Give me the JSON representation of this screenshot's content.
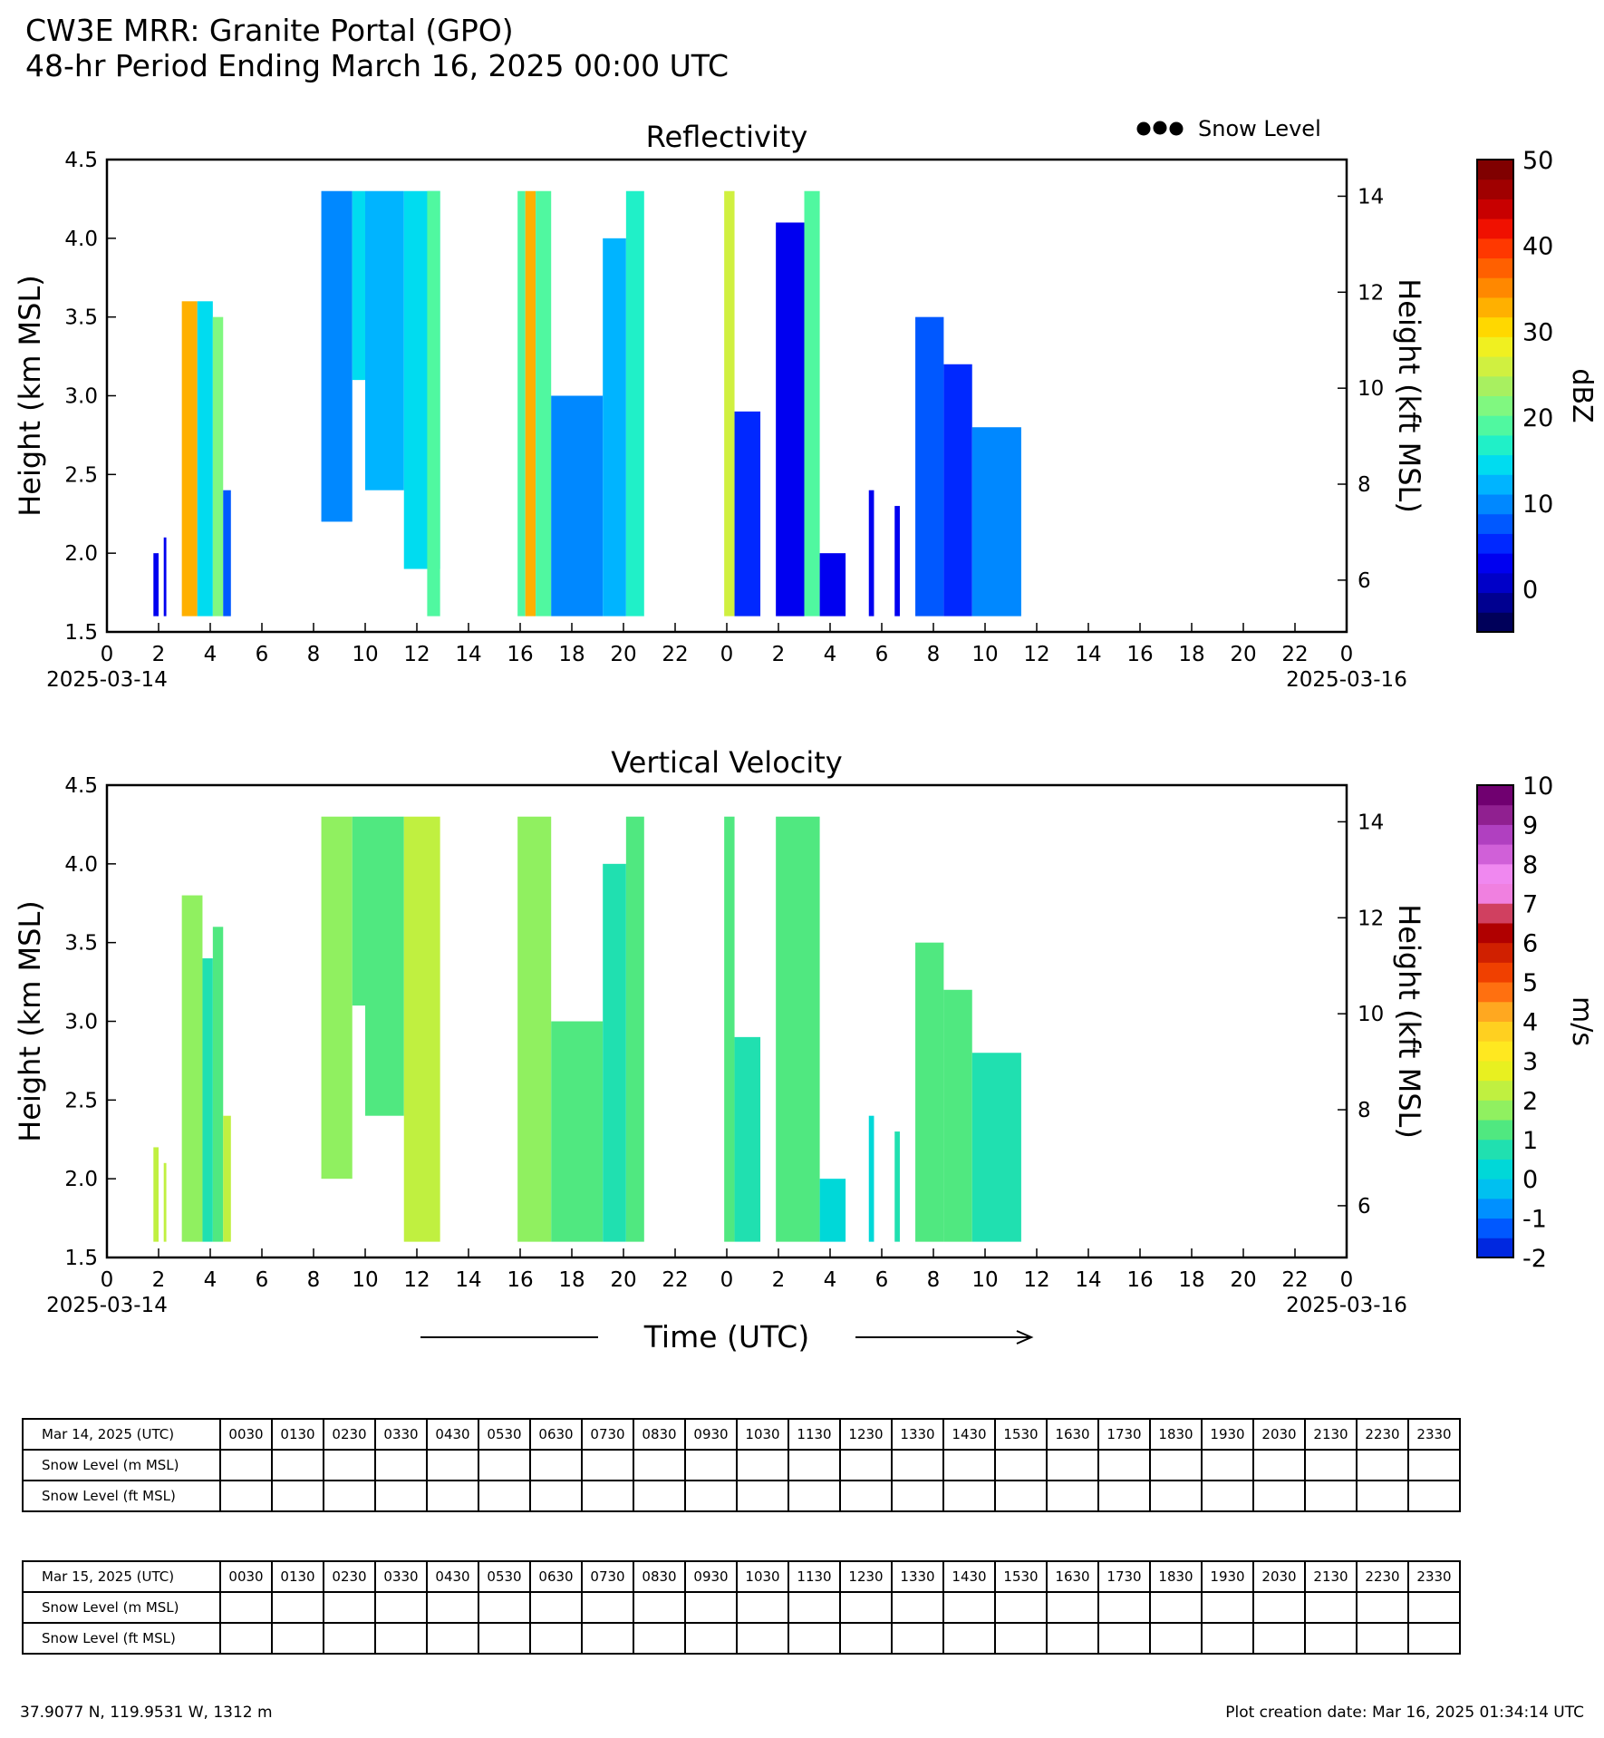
{
  "titles": {
    "line1": "CW3E MRR: Granite Portal (GPO)",
    "line2": "48-hr Period Ending March 16, 2025 00:00 UTC"
  },
  "legend": {
    "marker_label": "Snow Level"
  },
  "xaxis": {
    "label": "Time (UTC)",
    "tick_labels": [
      "0",
      "2",
      "4",
      "6",
      "8",
      "10",
      "12",
      "14",
      "16",
      "18",
      "20",
      "22",
      "0",
      "2",
      "4",
      "6",
      "8",
      "10",
      "12",
      "14",
      "16",
      "18",
      "20",
      "22",
      "0"
    ],
    "start_date": "2025-03-14",
    "end_date": "2025-03-16"
  },
  "chart_data": [
    {
      "type": "heatmap",
      "title": "Reflectivity",
      "ylabel": "Height (km MSL)",
      "ylabel_right": "Height (kft MSL)",
      "ylim": [
        1.5,
        4.5
      ],
      "yticks": [
        "1.5",
        "2.0",
        "2.5",
        "3.0",
        "3.5",
        "4.0",
        "4.5"
      ],
      "yticks_right": [
        "6",
        "8",
        "10",
        "12",
        "14"
      ],
      "xlim_hours": [
        0,
        48
      ],
      "colorbar": {
        "label": "dBZ",
        "range": [
          -5,
          50
        ],
        "ticks": [
          "0",
          "10",
          "20",
          "30",
          "40",
          "50"
        ],
        "colors": [
          "#00005a",
          "#000090",
          "#0000c8",
          "#0000f0",
          "#0028ff",
          "#0058ff",
          "#0088ff",
          "#00b4ff",
          "#00dcf0",
          "#20f0c8",
          "#50f8a0",
          "#80f880",
          "#a8f060",
          "#d0f040",
          "#f0f020",
          "#ffd800",
          "#ffb000",
          "#ff8800",
          "#ff6000",
          "#ff3800",
          "#f01000",
          "#c80000",
          "#a00000",
          "#800000"
        ]
      },
      "echoes": [
        {
          "start": 1.8,
          "end": 2.0,
          "top": 2.0,
          "base": 1.6,
          "dbz": 2
        },
        {
          "start": 2.2,
          "end": 2.3,
          "top": 2.1,
          "base": 1.6,
          "dbz": 2
        },
        {
          "start": 2.9,
          "end": 3.5,
          "top": 3.6,
          "base": 1.6,
          "dbz": 32
        },
        {
          "start": 3.5,
          "end": 4.1,
          "top": 3.6,
          "base": 1.6,
          "dbz": 15
        },
        {
          "start": 4.1,
          "end": 4.5,
          "top": 3.5,
          "base": 1.6,
          "dbz": 22
        },
        {
          "start": 4.5,
          "end": 4.8,
          "top": 2.4,
          "base": 1.6,
          "dbz": 8
        },
        {
          "start": 8.3,
          "end": 9.5,
          "top": 4.3,
          "base": 2.2,
          "dbz": 10
        },
        {
          "start": 9.5,
          "end": 10.0,
          "top": 4.3,
          "base": 3.1,
          "dbz": 14
        },
        {
          "start": 10.0,
          "end": 11.5,
          "top": 4.3,
          "base": 2.4,
          "dbz": 12
        },
        {
          "start": 11.5,
          "end": 12.9,
          "top": 4.3,
          "base": 1.9,
          "dbz": 14
        },
        {
          "start": 12.4,
          "end": 12.9,
          "top": 4.3,
          "base": 1.6,
          "dbz": 18
        },
        {
          "start": 15.9,
          "end": 16.2,
          "top": 4.3,
          "base": 1.6,
          "dbz": 18
        },
        {
          "start": 16.2,
          "end": 16.6,
          "top": 4.3,
          "base": 1.6,
          "dbz": 32
        },
        {
          "start": 16.6,
          "end": 17.2,
          "top": 4.3,
          "base": 1.6,
          "dbz": 18
        },
        {
          "start": 17.2,
          "end": 19.2,
          "top": 3.0,
          "base": 1.6,
          "dbz": 10
        },
        {
          "start": 19.2,
          "end": 20.1,
          "top": 4.0,
          "base": 1.6,
          "dbz": 12
        },
        {
          "start": 20.1,
          "end": 20.8,
          "top": 4.3,
          "base": 1.6,
          "dbz": 16
        },
        {
          "start": 23.9,
          "end": 24.3,
          "top": 4.3,
          "base": 1.6,
          "dbz": 26
        },
        {
          "start": 24.3,
          "end": 25.3,
          "top": 2.9,
          "base": 1.6,
          "dbz": 5
        },
        {
          "start": 25.9,
          "end": 27.0,
          "top": 4.1,
          "base": 1.6,
          "dbz": 4
        },
        {
          "start": 27.0,
          "end": 27.6,
          "top": 4.3,
          "base": 1.6,
          "dbz": 18
        },
        {
          "start": 27.6,
          "end": 28.6,
          "top": 2.0,
          "base": 1.6,
          "dbz": 4
        },
        {
          "start": 29.5,
          "end": 29.7,
          "top": 2.4,
          "base": 1.6,
          "dbz": 3
        },
        {
          "start": 30.5,
          "end": 30.7,
          "top": 2.3,
          "base": 1.6,
          "dbz": 3
        },
        {
          "start": 31.3,
          "end": 32.4,
          "top": 3.5,
          "base": 1.6,
          "dbz": 8
        },
        {
          "start": 32.4,
          "end": 33.5,
          "top": 3.2,
          "base": 1.6,
          "dbz": 6
        },
        {
          "start": 33.5,
          "end": 35.4,
          "top": 2.8,
          "base": 1.6,
          "dbz": 10
        }
      ]
    },
    {
      "type": "heatmap",
      "title": "Vertical Velocity",
      "ylabel": "Height (km MSL)",
      "ylabel_right": "Height (kft MSL)",
      "ylim": [
        1.5,
        4.5
      ],
      "yticks": [
        "1.5",
        "2.0",
        "2.5",
        "3.0",
        "3.5",
        "4.0",
        "4.5"
      ],
      "yticks_right": [
        "6",
        "8",
        "10",
        "12",
        "14"
      ],
      "xlim_hours": [
        0,
        48
      ],
      "colorbar": {
        "label": "m/s",
        "range": [
          -2,
          10
        ],
        "ticks": [
          "-2",
          "-1",
          "0",
          "1",
          "2",
          "3",
          "4",
          "5",
          "6",
          "7",
          "8",
          "9",
          "10"
        ],
        "colors": [
          "#0028e0",
          "#0058ff",
          "#0090ff",
          "#00c0f0",
          "#00d8d8",
          "#20e0b0",
          "#50e880",
          "#90f060",
          "#c0f040",
          "#e8f020",
          "#ffe820",
          "#ffd020",
          "#ffa820",
          "#ff7010",
          "#f04000",
          "#d02000",
          "#b00000",
          "#d04060",
          "#f080e0",
          "#f088f0",
          "#d060d8",
          "#b040c0",
          "#902090",
          "#700070"
        ]
      },
      "echoes": [
        {
          "start": 1.8,
          "end": 2.0,
          "top": 2.2,
          "base": 1.6,
          "ms": 2.0
        },
        {
          "start": 2.2,
          "end": 2.3,
          "top": 2.1,
          "base": 1.6,
          "ms": 2.0
        },
        {
          "start": 2.9,
          "end": 3.7,
          "top": 3.8,
          "base": 1.6,
          "ms": 1.5
        },
        {
          "start": 3.7,
          "end": 4.1,
          "top": 3.4,
          "base": 1.6,
          "ms": 0.5
        },
        {
          "start": 4.1,
          "end": 4.5,
          "top": 3.6,
          "base": 1.6,
          "ms": 1.0
        },
        {
          "start": 4.5,
          "end": 4.8,
          "top": 2.4,
          "base": 1.6,
          "ms": 2.0
        },
        {
          "start": 8.3,
          "end": 9.5,
          "top": 4.3,
          "base": 2.0,
          "ms": 1.7
        },
        {
          "start": 9.5,
          "end": 10.0,
          "top": 4.3,
          "base": 3.1,
          "ms": 1.3
        },
        {
          "start": 10.0,
          "end": 11.5,
          "top": 4.3,
          "base": 2.4,
          "ms": 1.2
        },
        {
          "start": 11.5,
          "end": 12.9,
          "top": 4.3,
          "base": 1.6,
          "ms": 2.2
        },
        {
          "start": 15.9,
          "end": 17.2,
          "top": 4.3,
          "base": 1.6,
          "ms": 1.8
        },
        {
          "start": 17.2,
          "end": 19.2,
          "top": 3.0,
          "base": 1.6,
          "ms": 1.0
        },
        {
          "start": 19.2,
          "end": 20.1,
          "top": 4.0,
          "base": 1.6,
          "ms": 0.6
        },
        {
          "start": 20.1,
          "end": 20.8,
          "top": 4.3,
          "base": 1.6,
          "ms": 1.0
        },
        {
          "start": 23.9,
          "end": 24.3,
          "top": 4.3,
          "base": 1.6,
          "ms": 1.2
        },
        {
          "start": 24.3,
          "end": 25.3,
          "top": 2.9,
          "base": 1.6,
          "ms": 0.5
        },
        {
          "start": 25.9,
          "end": 27.6,
          "top": 4.3,
          "base": 1.6,
          "ms": 1.3
        },
        {
          "start": 27.6,
          "end": 28.6,
          "top": 2.0,
          "base": 1.6,
          "ms": 0.4
        },
        {
          "start": 29.5,
          "end": 29.7,
          "top": 2.4,
          "base": 1.6,
          "ms": 0.4
        },
        {
          "start": 30.5,
          "end": 30.7,
          "top": 2.3,
          "base": 1.6,
          "ms": 0.6
        },
        {
          "start": 31.3,
          "end": 32.4,
          "top": 3.5,
          "base": 1.6,
          "ms": 1.4
        },
        {
          "start": 32.4,
          "end": 33.5,
          "top": 3.2,
          "base": 1.6,
          "ms": 1.2
        },
        {
          "start": 33.5,
          "end": 35.4,
          "top": 2.8,
          "base": 1.6,
          "ms": 0.6
        }
      ]
    }
  ],
  "snow_tables": [
    {
      "date_label": "Mar 14, 2025 (UTC)",
      "times": [
        "0030",
        "0130",
        "0230",
        "0330",
        "0430",
        "0530",
        "0630",
        "0730",
        "0830",
        "0930",
        "1030",
        "1130",
        "1230",
        "1330",
        "1430",
        "1530",
        "1630",
        "1730",
        "1830",
        "1930",
        "2030",
        "2130",
        "2230",
        "2330"
      ],
      "row_m": "Snow Level (m MSL)",
      "row_ft": "Snow Level (ft MSL)"
    },
    {
      "date_label": "Mar 15, 2025 (UTC)",
      "times": [
        "0030",
        "0130",
        "0230",
        "0330",
        "0430",
        "0530",
        "0630",
        "0730",
        "0830",
        "0930",
        "1030",
        "1130",
        "1230",
        "1330",
        "1430",
        "1530",
        "1630",
        "1730",
        "1830",
        "1930",
        "2030",
        "2130",
        "2230",
        "2330"
      ],
      "row_m": "Snow Level (m MSL)",
      "row_ft": "Snow Level (ft MSL)"
    }
  ],
  "footer": {
    "location": "37.9077 N, 119.9531 W, 1312 m",
    "created": "Plot creation date: Mar 16, 2025 01:34:14 UTC"
  }
}
